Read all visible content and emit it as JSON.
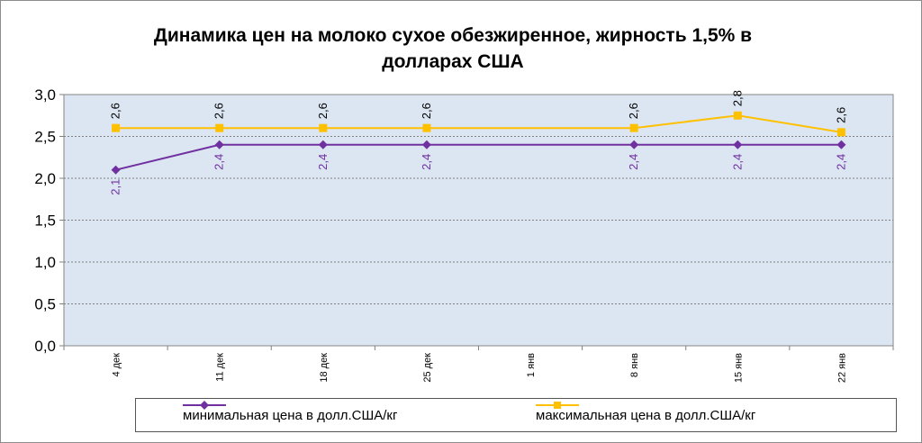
{
  "chart_data": {
    "type": "line",
    "title_lines": [
      "Динамика цен на молоко сухое обезжиренное, жирность 1,5%  в",
      "долларах США"
    ],
    "categories": [
      "4 дек",
      "11 дек",
      "18 дек",
      "25 дек",
      "1 янв",
      "8 янв",
      "15 янв",
      "22 янв"
    ],
    "ylim": [
      0,
      3
    ],
    "yticks": [
      "0,0",
      "0,5",
      "1,0",
      "1,5",
      "2,0",
      "2,5",
      "3,0"
    ],
    "grid": true,
    "legend_position": "bottom",
    "series": [
      {
        "name": "минимальная цена в долл.США/кг",
        "color": "#7030a0",
        "marker": "diamond",
        "values": [
          2.1,
          2.4,
          2.4,
          2.4,
          null,
          2.4,
          2.4,
          2.4
        ],
        "labels": [
          "2,1",
          "2,4",
          "2,4",
          "2,4",
          "",
          "2,4",
          "2,4",
          "2,4"
        ]
      },
      {
        "name": "максимальная цена в долл.США/кг",
        "color": "#ffc000",
        "marker": "square",
        "values": [
          2.6,
          2.6,
          2.6,
          2.6,
          null,
          2.6,
          2.75,
          2.55
        ],
        "labels": [
          "2,6",
          "2,6",
          "2,6",
          "2,6",
          "",
          "2,6",
          "2,8",
          "2,6"
        ]
      }
    ]
  }
}
